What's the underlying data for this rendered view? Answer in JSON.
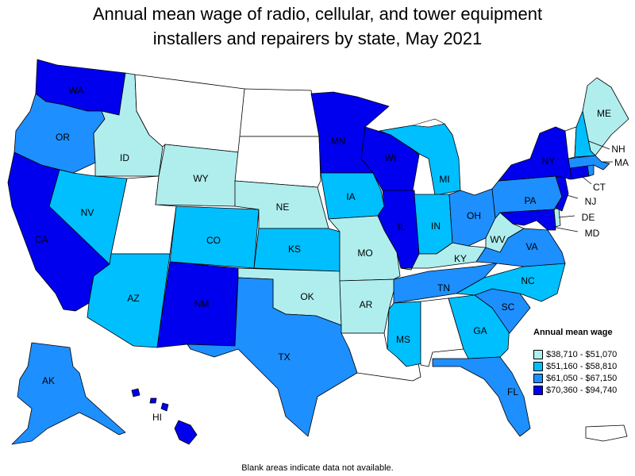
{
  "title_line1": "Annual mean wage of radio, cellular, and tower equipment",
  "title_line2": "installers and repairers by state, May 2021",
  "legend": {
    "title": "Annual mean wage",
    "items": [
      {
        "label": "$38,710 - $51,070",
        "color": "#b0eeee"
      },
      {
        "label": "$51,160 - $58,810",
        "color": "#00bfff"
      },
      {
        "label": "$61,050 - $67,150",
        "color": "#1e8fff"
      },
      {
        "label": "$70,360 - $94,740",
        "color": "#0000ee"
      }
    ]
  },
  "no_data_color": "#ffffff",
  "footnote": "Blank areas indicate data not available.",
  "states": {
    "WA": {
      "label": "WA",
      "tier": 4
    },
    "OR": {
      "label": "OR",
      "tier": 3
    },
    "CA": {
      "label": "CA",
      "tier": 4
    },
    "ID": {
      "label": "ID",
      "tier": 1
    },
    "NV": {
      "label": "NV",
      "tier": 2
    },
    "AZ": {
      "label": "AZ",
      "tier": 2
    },
    "MT": {
      "label": "",
      "tier": 0
    },
    "WY": {
      "label": "WY",
      "tier": 1
    },
    "UT": {
      "label": "",
      "tier": 0
    },
    "CO": {
      "label": "CO",
      "tier": 2
    },
    "NM": {
      "label": "NM",
      "tier": 4
    },
    "ND": {
      "label": "",
      "tier": 0
    },
    "SD": {
      "label": "",
      "tier": 0
    },
    "NE": {
      "label": "NE",
      "tier": 1
    },
    "KS": {
      "label": "KS",
      "tier": 2
    },
    "OK": {
      "label": "OK",
      "tier": 1
    },
    "TX": {
      "label": "TX",
      "tier": 3
    },
    "MN": {
      "label": "MN",
      "tier": 4
    },
    "IA": {
      "label": "IA",
      "tier": 2
    },
    "MO": {
      "label": "MO",
      "tier": 1
    },
    "AR": {
      "label": "AR",
      "tier": 1
    },
    "LA": {
      "label": "",
      "tier": 0
    },
    "WI": {
      "label": "WI",
      "tier": 4
    },
    "IL": {
      "label": "IL",
      "tier": 4
    },
    "MI": {
      "label": "MI",
      "tier": 2
    },
    "IN": {
      "label": "IN",
      "tier": 2
    },
    "OH": {
      "label": "OH",
      "tier": 3
    },
    "KY": {
      "label": "KY",
      "tier": 1
    },
    "TN": {
      "label": "TN",
      "tier": 3
    },
    "MS": {
      "label": "MS",
      "tier": 2
    },
    "AL": {
      "label": "",
      "tier": 0
    },
    "GA": {
      "label": "GA",
      "tier": 2
    },
    "FL": {
      "label": "FL",
      "tier": 3
    },
    "SC": {
      "label": "SC",
      "tier": 3
    },
    "NC": {
      "label": "NC",
      "tier": 2
    },
    "VA": {
      "label": "VA",
      "tier": 3
    },
    "WV": {
      "label": "WV",
      "tier": 1
    },
    "PA": {
      "label": "PA",
      "tier": 3
    },
    "NY": {
      "label": "NY",
      "tier": 4
    },
    "VT": {
      "label": "",
      "tier": 0
    },
    "NH": {
      "label": "NH",
      "tier": 2
    },
    "ME": {
      "label": "ME",
      "tier": 1
    },
    "MA": {
      "label": "MA",
      "tier": 3
    },
    "CT": {
      "label": "CT",
      "tier": 4
    },
    "RI": {
      "label": "",
      "tier": 3
    },
    "NJ": {
      "label": "NJ",
      "tier": 4
    },
    "DE": {
      "label": "DE",
      "tier": 1
    },
    "MD": {
      "label": "MD",
      "tier": 4
    },
    "AK": {
      "label": "AK",
      "tier": 3
    },
    "HI": {
      "label": "HI",
      "tier": 4
    },
    "PR": {
      "label": "",
      "tier": 0
    }
  }
}
